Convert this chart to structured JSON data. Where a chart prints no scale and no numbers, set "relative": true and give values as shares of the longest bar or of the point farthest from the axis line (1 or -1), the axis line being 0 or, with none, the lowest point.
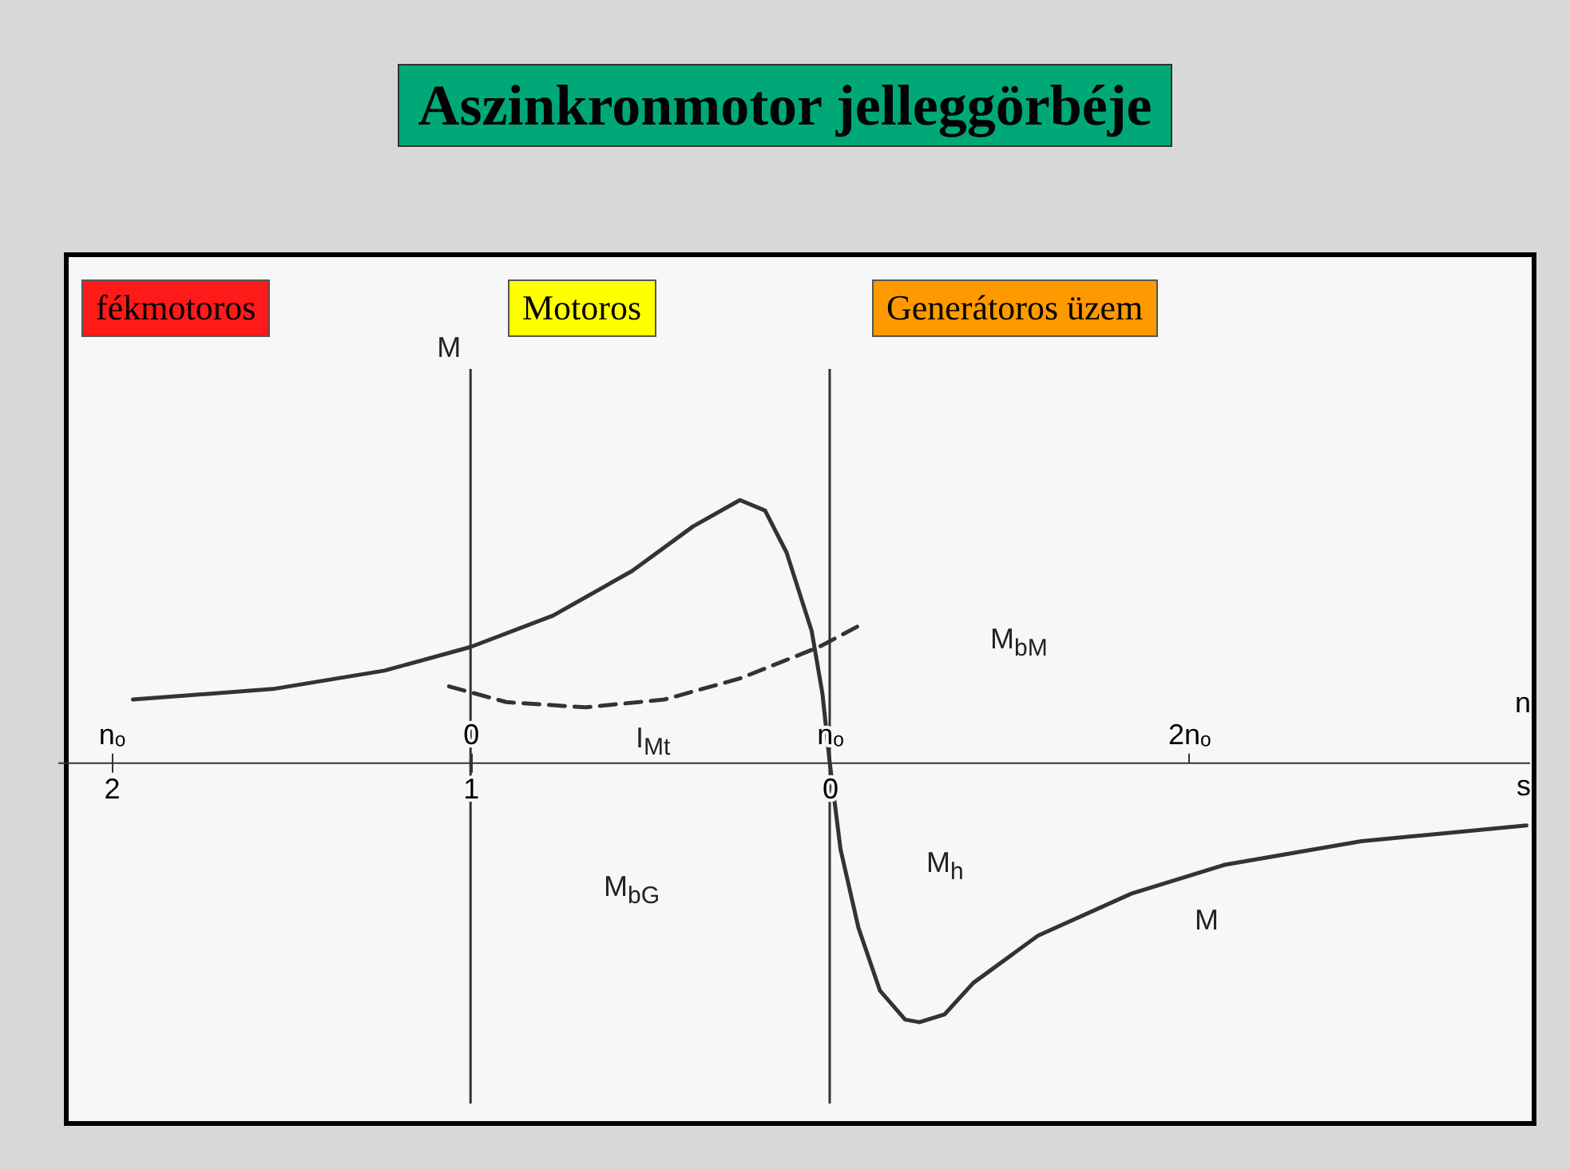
{
  "chart_data": {
    "type": "line",
    "title": "Aszinkronmotor jelleggörbéje",
    "relative": true,
    "xlabel": "n",
    "x2label": "s",
    "ylabel": "M",
    "xlim": [
      -1.15,
      2.95
    ],
    "xticks": [
      {
        "value": -1,
        "label": "nₒ"
      },
      0,
      {
        "value": 1,
        "label": "nₒ"
      },
      {
        "value": 2,
        "label": "2nₒ"
      }
    ],
    "x2lim": [
      2.15,
      -1.95
    ],
    "x2ticks": [
      2,
      1,
      0
    ],
    "series": [
      {
        "color": "#333333",
        "x": [
          -0.94,
          -0.55,
          -0.24,
          0,
          0.23,
          0.45,
          0.62,
          0.75,
          0.82,
          0.88,
          0.95,
          0.98,
          1,
          1.03,
          1.08,
          1.14,
          1.21,
          1.25,
          1.32,
          1.4,
          1.58,
          1.84,
          2.1,
          2.48,
          2.94
        ],
        "values": [
          0.24,
          0.28,
          0.35,
          0.44,
          0.56,
          0.73,
          0.9,
          1,
          0.96,
          0.8,
          0.5,
          0.26,
          0,
          -0.33,
          -0.63,
          -0.87,
          -0.98,
          -0.99,
          -0.96,
          -0.84,
          -0.66,
          -0.5,
          -0.39,
          -0.3,
          -0.24
        ]
      },
      {
        "color": "#333333",
        "line_style": "dashed",
        "x": [
          -0.06,
          0.1,
          0.32,
          0.54,
          0.75,
          0.97,
          1.08
        ],
        "values": [
          0.29,
          0.23,
          0.21,
          0.24,
          0.32,
          0.44,
          0.52
        ]
      }
    ],
    "ref_lines": [
      {
        "axis": "x",
        "value": 0
      },
      {
        "axis": "x",
        "value": 1
      }
    ],
    "annotations": [
      "fékmotoros",
      "Motoros",
      "Generátoros üzem",
      "M$_{bM}$",
      "M$_{bG}$",
      "M$_{h}$",
      "I$_{Mt}$",
      "M"
    ]
  }
}
